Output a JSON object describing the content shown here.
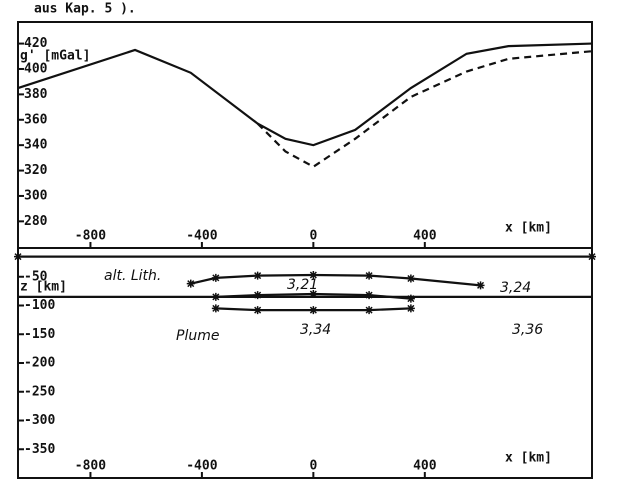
{
  "caption": "aus Kap. 5 ).",
  "chart_data": [
    {
      "type": "line",
      "y_label": "g' [mGal]",
      "x_label": "x [km]",
      "xlim": [
        -1060,
        1000
      ],
      "ylim": [
        259,
        437
      ],
      "xticks": [
        -800,
        -400,
        0,
        400
      ],
      "yticks": [
        280,
        300,
        320,
        340,
        360,
        380,
        400,
        420
      ],
      "x": [
        -1060,
        -640,
        -440,
        -200,
        -100,
        0,
        150,
        350,
        550,
        700,
        1000
      ],
      "series": [
        {
          "color": "#111",
          "dash": false,
          "values": [
            385,
            415,
            397,
            357,
            345,
            340,
            352,
            385,
            412,
            418,
            420
          ]
        },
        {
          "color": "#111",
          "dash": true,
          "values": [
            null,
            null,
            null,
            357,
            335,
            323,
            345,
            378,
            398,
            408,
            414
          ]
        }
      ]
    },
    {
      "type": "line",
      "y_label": "z [km]",
      "x_label": "x [km]",
      "xlim": [
        -1060,
        1000
      ],
      "ylim": [
        -400,
        0
      ],
      "xticks": [
        -800,
        -400,
        0,
        400
      ],
      "yticks": [
        -50,
        -100,
        -150,
        -200,
        -250,
        -300,
        -350
      ],
      "x": [
        -440,
        -350,
        -200,
        0,
        200,
        350,
        600
      ],
      "series": [
        {
          "color": "#111",
          "dash": false,
          "markers": true,
          "x": [
            -1060,
            1000
          ],
          "values": [
            -15,
            -15
          ]
        },
        {
          "color": "#111",
          "dash": false,
          "markers": false,
          "x": [
            -1060,
            1000
          ],
          "values": [
            -85,
            -85
          ]
        },
        {
          "color": "#111",
          "dash": false,
          "markers": true,
          "values": [
            -62,
            -52,
            -48,
            -47,
            -48,
            -53,
            -65
          ]
        },
        {
          "color": "#111",
          "dash": false,
          "markers": true,
          "x": [
            -350,
            -200,
            0,
            200,
            350
          ],
          "values": [
            -85,
            -82,
            -80,
            -82,
            -88
          ]
        },
        {
          "color": "#111",
          "dash": false,
          "markers": true,
          "x": [
            -350,
            -200,
            0,
            200,
            350
          ],
          "values": [
            -105,
            -108,
            -108,
            -108,
            -105
          ]
        }
      ],
      "annotations": [
        "alt. Lith.",
        "Plume",
        "3,21",
        "3,24",
        "3,34",
        "3,36"
      ]
    }
  ]
}
